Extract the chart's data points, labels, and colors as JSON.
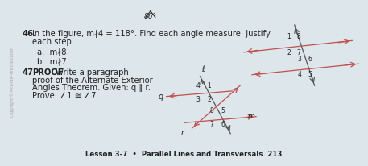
{
  "bg_color": "#dde6ea",
  "title_number": "46.",
  "title_text": "In the figure, m∤4 = 118°. Find each angle measure. Justify",
  "each_step": "each step.",
  "sub_a": "a.  m∤8",
  "sub_b": "b.  m∤7",
  "prob47_number": "47.",
  "prob47_bold": "PROOF",
  "prob47_line1": " Write a paragraph",
  "prob47_line2": "proof of the Alternate Exterior",
  "prob47_line3": "Angles Theorem. Given: q ∥ r.",
  "prob47_line4": "Prove: ∠1 ≅ ∠7.",
  "footer": "Lesson 3-7  •  Parallel Lines and Transversals  213",
  "top_label": "86°",
  "arrow_color": "#c05050",
  "teal_color": "#4a8a8a",
  "line_color": "#555555",
  "text_color": "#222222",
  "sidebar_text": "Copyright © McGraw-Hill Education"
}
